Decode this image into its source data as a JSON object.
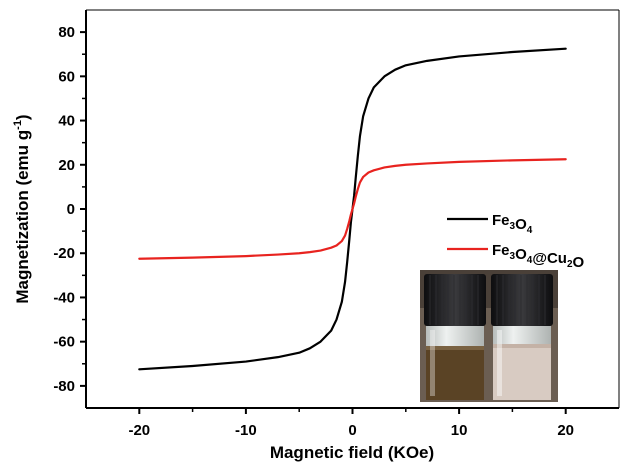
{
  "chart_data": {
    "type": "line",
    "xlabel": "Magnetic field (KOe)",
    "ylabel": "Magnetization (emu g-1)",
    "ylabel_parts": {
      "main": "Magnetization (emu g",
      "sup": "-1",
      "tail": ")"
    },
    "xlim": [
      -25,
      25
    ],
    "ylim": [
      -90,
      90
    ],
    "x_ticks": [
      -20,
      -10,
      0,
      10,
      20
    ],
    "y_ticks": [
      -80,
      -60,
      -40,
      -20,
      0,
      20,
      40,
      60,
      80
    ],
    "grid": false,
    "legend_position": "right",
    "series": [
      {
        "name": "Fe3O4",
        "name_parts": [
          {
            "t": "Fe",
            "sub": false
          },
          {
            "t": "3",
            "sub": true
          },
          {
            "t": "O",
            "sub": false
          },
          {
            "t": "4",
            "sub": true
          }
        ],
        "color": "#000000",
        "x": [
          -20,
          -15,
          -10,
          -7,
          -5,
          -4,
          -3,
          -2,
          -1.5,
          -1,
          -0.7,
          -0.5,
          -0.3,
          -0.15,
          0,
          0.15,
          0.3,
          0.5,
          0.7,
          1,
          1.5,
          2,
          3,
          4,
          5,
          7,
          10,
          15,
          20
        ],
        "y": [
          -72.5,
          -71,
          -69,
          -67,
          -65,
          -63,
          -60,
          -55,
          -50,
          -42,
          -33,
          -24,
          -14,
          -6,
          0,
          6,
          14,
          24,
          33,
          42,
          50,
          55,
          60,
          63,
          65,
          67,
          69,
          71,
          72.5
        ]
      },
      {
        "name": "Fe3O4@Cu2O",
        "name_parts": [
          {
            "t": "Fe",
            "sub": false
          },
          {
            "t": "3",
            "sub": true
          },
          {
            "t": "O",
            "sub": false
          },
          {
            "t": "4",
            "sub": true
          },
          {
            "t": "@Cu",
            "sub": false
          },
          {
            "t": "2",
            "sub": true
          },
          {
            "t": "O",
            "sub": false
          }
        ],
        "color": "#e8231f",
        "x": [
          -20,
          -15,
          -10,
          -7,
          -5,
          -4,
          -3,
          -2,
          -1.5,
          -1,
          -0.7,
          -0.5,
          -0.3,
          -0.15,
          0,
          0.15,
          0.3,
          0.5,
          0.7,
          1,
          1.5,
          2,
          3,
          4,
          5,
          7,
          10,
          15,
          20
        ],
        "y": [
          -22.5,
          -22,
          -21.3,
          -20.6,
          -20,
          -19.5,
          -18.8,
          -17.5,
          -16.5,
          -14.5,
          -12,
          -9,
          -5.5,
          -2.5,
          0,
          2.5,
          5.5,
          9,
          12,
          14.5,
          16.5,
          17.5,
          18.8,
          19.5,
          20,
          20.6,
          21.3,
          22,
          22.5
        ]
      }
    ]
  },
  "colors": {
    "axis": "#000000",
    "vial_cap": "#1c1c1e",
    "vial_left_liquid": "#5a4325",
    "vial_right_liquid": "#d8cbc2",
    "vial_glass": "#dfe3e2",
    "photo_background": "#6b5e52"
  },
  "inset_photo": {
    "subject": "two-vials-photo"
  }
}
